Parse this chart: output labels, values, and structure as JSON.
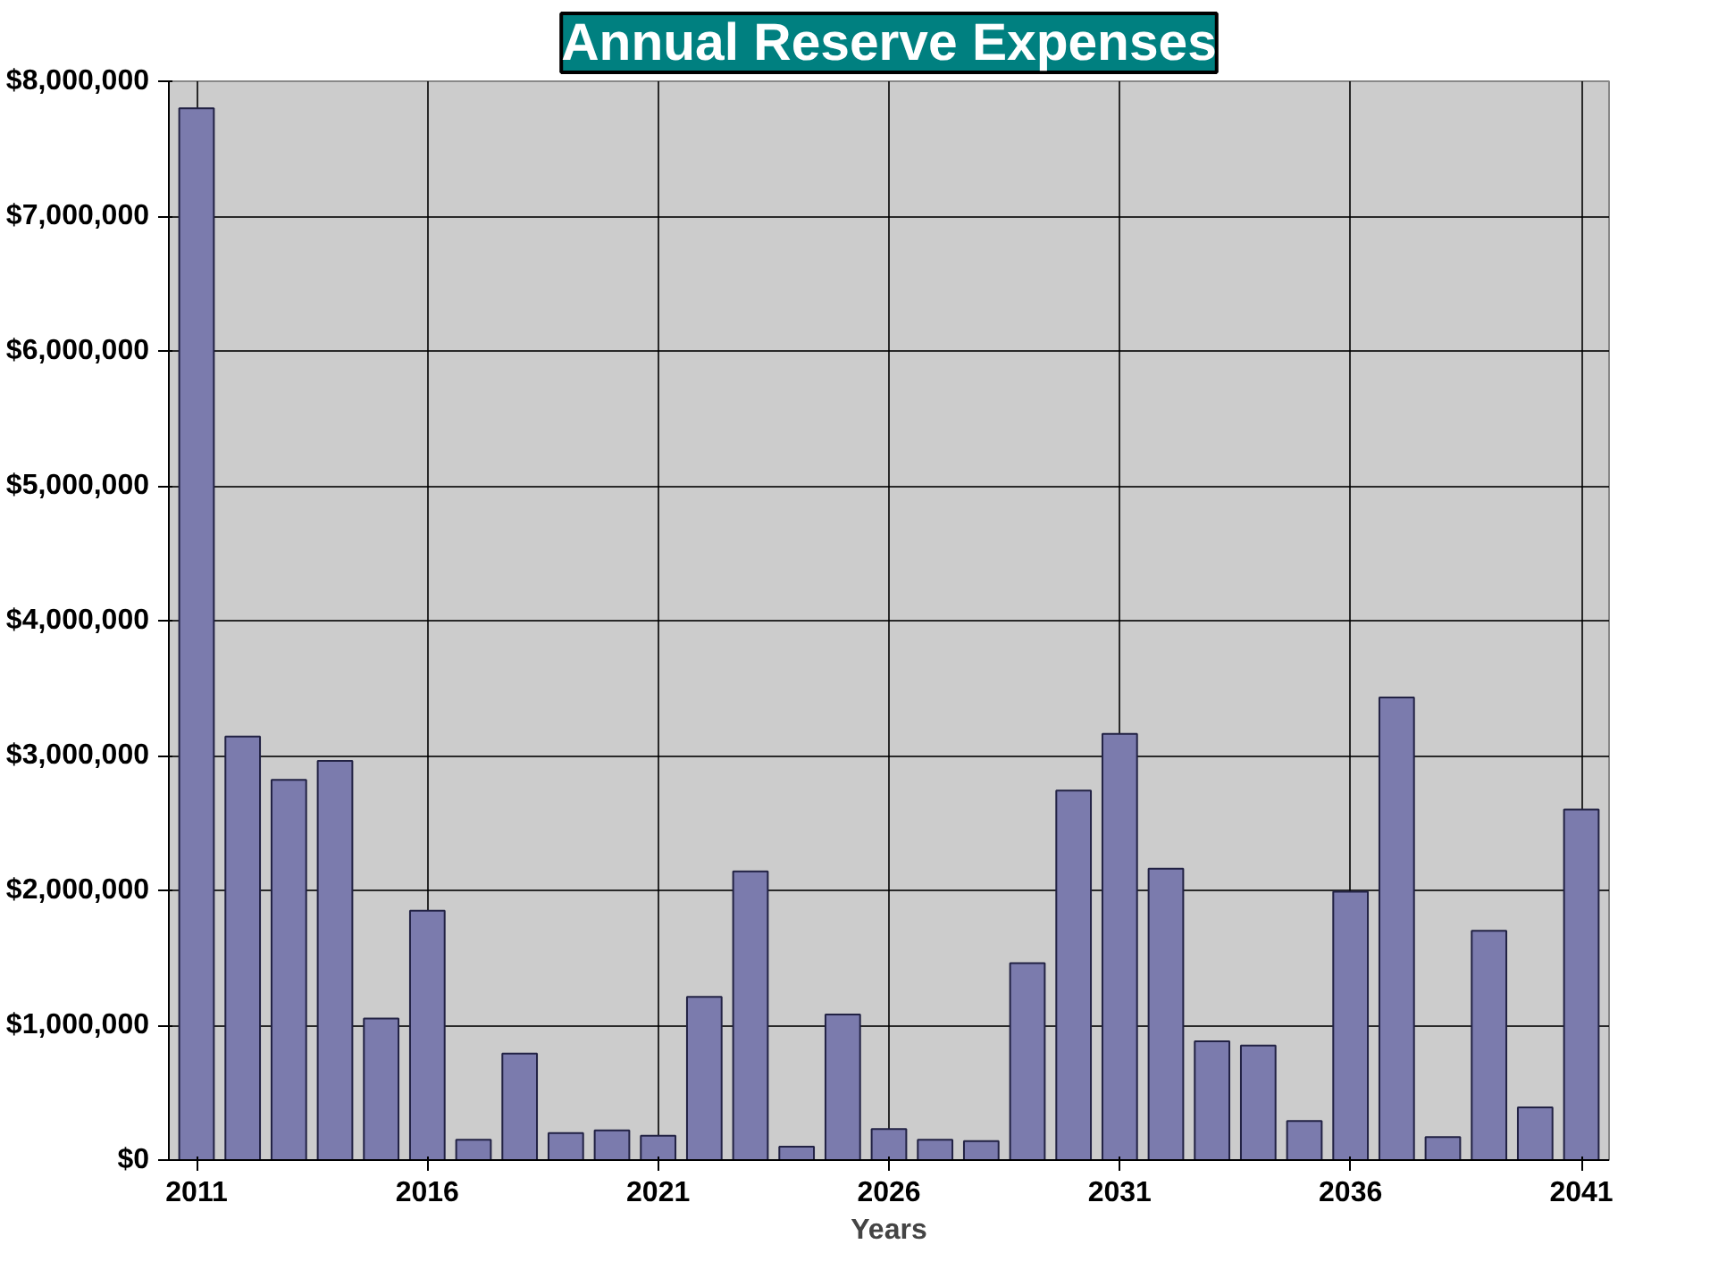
{
  "chart_data": {
    "type": "bar",
    "title": "Annual Reserve Expenses",
    "xlabel": "Years",
    "categories": [
      "2011",
      null,
      null,
      null,
      null,
      "2016",
      null,
      null,
      null,
      null,
      "2021",
      null,
      null,
      null,
      null,
      "2026",
      null,
      null,
      null,
      null,
      "2031",
      null,
      null,
      null,
      null,
      "2036",
      null,
      null,
      null,
      null,
      "2041"
    ],
    "values": [
      7800000,
      3140000,
      2820000,
      2960000,
      1050000,
      1850000,
      150000,
      790000,
      200000,
      220000,
      180000,
      1210000,
      2140000,
      100000,
      1080000,
      230000,
      150000,
      140000,
      1460000,
      2740000,
      3160000,
      2160000,
      880000,
      850000,
      290000,
      1990000,
      3430000,
      170000,
      1700000,
      390000,
      2600000
    ],
    "color": "#7b7bad",
    "ylim": [
      0,
      8000000
    ],
    "yticks": [
      {
        "value": 0,
        "label": "$0"
      },
      {
        "value": 1000000,
        "label": "$1,000,000"
      },
      {
        "value": 2000000,
        "label": "$2,000,000"
      },
      {
        "value": 3000000,
        "label": "$3,000,000"
      },
      {
        "value": 4000000,
        "label": "$4,000,000"
      },
      {
        "value": 5000000,
        "label": "$5,000,000"
      },
      {
        "value": 6000000,
        "label": "$6,000,000"
      },
      {
        "value": 7000000,
        "label": "$7,000,000"
      },
      {
        "value": 8000000,
        "label": "$8,000,000"
      }
    ],
    "grid": true
  }
}
